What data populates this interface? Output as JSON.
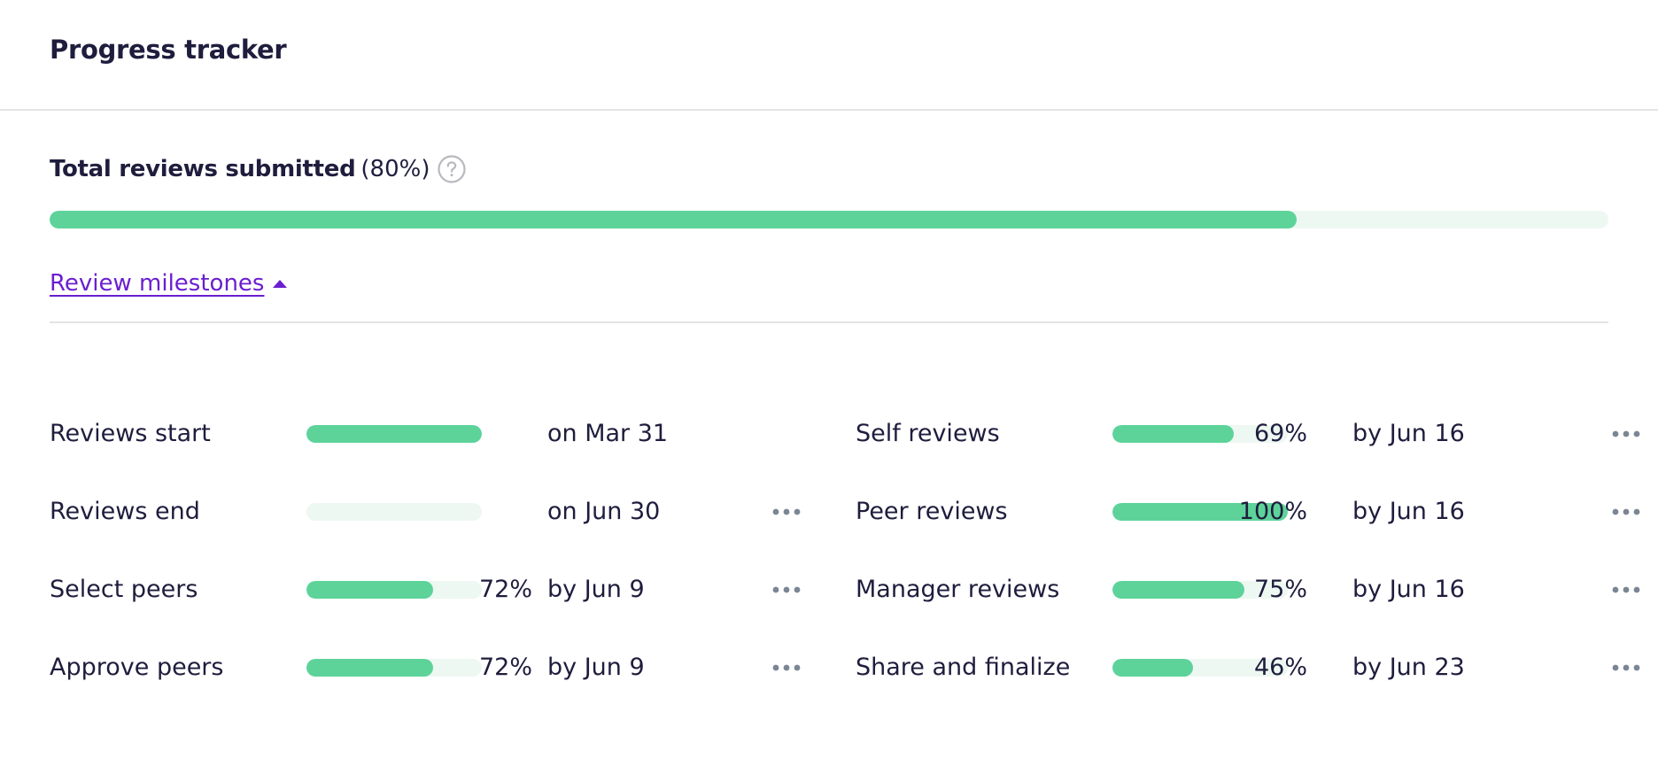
{
  "header": {
    "title": "Progress tracker"
  },
  "total": {
    "label": "Total reviews submitted",
    "percent_text": "(80%)",
    "progress": 0.8,
    "help_icon": "help-circle-icon"
  },
  "milestones_toggle": {
    "label": "Review milestones",
    "icon": "caret-up-icon"
  },
  "colors": {
    "text": "#1f1d3d",
    "accent_link": "#6a1fd0",
    "bar_fill": "#5dd39a",
    "bar_track": "#eef8f2",
    "divider": "#e4e4e7",
    "more_dots": "#7b8694"
  },
  "milestones": {
    "left": [
      {
        "label": "Reviews start",
        "progress": 1.0,
        "percent": "",
        "date": "on Mar 31",
        "has_menu": false
      },
      {
        "label": "Reviews end",
        "progress": 0.0,
        "percent": "",
        "date": "on Jun 30",
        "has_menu": true
      },
      {
        "label": "Select peers",
        "progress": 0.72,
        "percent": "72%",
        "date": "by Jun 9",
        "has_menu": true
      },
      {
        "label": "Approve peers",
        "progress": 0.72,
        "percent": "72%",
        "date": "by Jun 9",
        "has_menu": true
      }
    ],
    "right": [
      {
        "label": "Self reviews",
        "progress": 0.69,
        "percent": "69%",
        "date": "by Jun 16",
        "has_menu": true
      },
      {
        "label": "Peer reviews",
        "progress": 1.0,
        "percent": "100%",
        "date": "by Jun 16",
        "has_menu": true
      },
      {
        "label": "Manager reviews",
        "progress": 0.75,
        "percent": "75%",
        "date": "by Jun 16",
        "has_menu": true
      },
      {
        "label": "Share and finalize",
        "progress": 0.46,
        "percent": "46%",
        "date": "by Jun 23",
        "has_menu": true
      }
    ]
  }
}
